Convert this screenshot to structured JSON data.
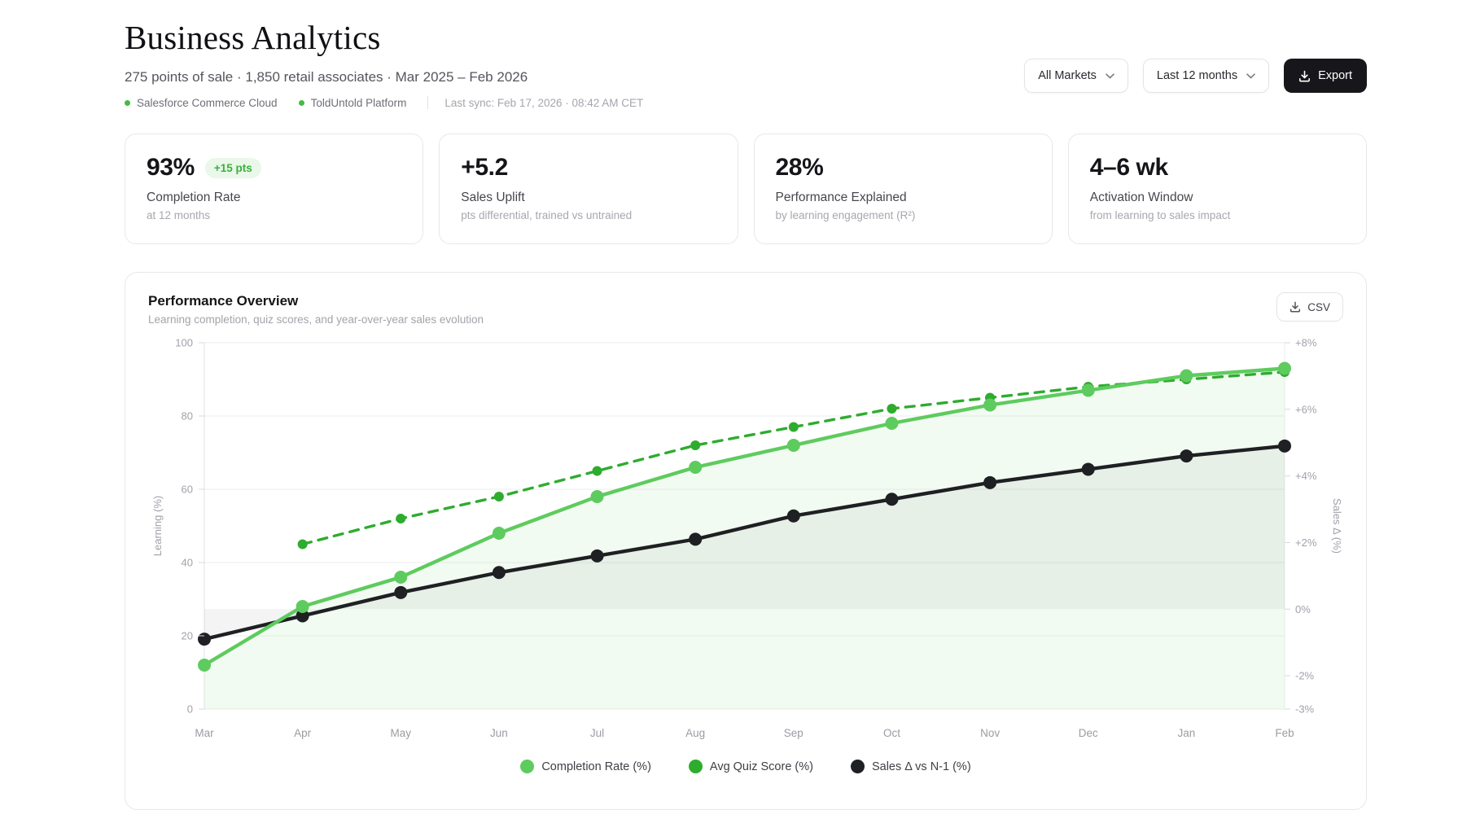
{
  "header": {
    "title": "Business Analytics",
    "subtitle": "275 points of sale · 1,850 retail associates · Mar 2025 – Feb 2026",
    "sources": [
      {
        "label": "Salesforce Commerce Cloud"
      },
      {
        "label": "ToldUntold Platform"
      }
    ],
    "last_sync": "Last sync: Feb 17, 2026 · 08:42 AM CET",
    "controls": {
      "market_filter": "All Markets",
      "period_filter": "Last 12 months",
      "export_label": "Export"
    }
  },
  "kpis": [
    {
      "value": "93%",
      "badge": "+15 pts",
      "label": "Completion Rate",
      "sublabel": "at 12 months"
    },
    {
      "value": "+5.2",
      "label": "Sales Uplift",
      "sublabel": "pts differential, trained vs untrained"
    },
    {
      "value": "28%",
      "label": "Performance Explained",
      "sublabel": "by learning engagement (R²)"
    },
    {
      "value": "4–6 wk",
      "label": "Activation Window",
      "sublabel": "from learning to sales impact"
    }
  ],
  "chart_card": {
    "csv_label": "CSV"
  },
  "chart_data": {
    "type": "line",
    "title": "Performance Overview",
    "subtitle": "Learning completion, quiz scores, and year-over-year sales evolution",
    "categories": [
      "Mar",
      "Apr",
      "May",
      "Jun",
      "Jul",
      "Aug",
      "Sep",
      "Oct",
      "Nov",
      "Dec",
      "Jan",
      "Feb"
    ],
    "series": [
      {
        "name": "Completion Rate (%)",
        "axis": "left",
        "color": "#5ECB5E",
        "style": "solid",
        "area": true,
        "values": [
          12,
          28,
          36,
          48,
          58,
          66,
          72,
          78,
          83,
          87,
          91,
          93
        ]
      },
      {
        "name": "Avg Quiz Score (%)",
        "axis": "left",
        "color": "#2EAC2E",
        "style": "dashed",
        "area": false,
        "values": [
          null,
          45,
          52,
          58,
          65,
          72,
          77,
          82,
          85,
          88,
          90,
          92
        ]
      },
      {
        "name": "Sales Δ vs N-1 (%)",
        "axis": "right",
        "color": "#1F2023",
        "style": "solid",
        "area_to_zero": true,
        "values": [
          -0.9,
          -0.2,
          0.5,
          1.1,
          1.6,
          2.1,
          2.8,
          3.3,
          3.8,
          4.2,
          4.6,
          4.9
        ]
      }
    ],
    "left_axis": {
      "label": "Learning (%)",
      "min": 0,
      "max": 100,
      "ticks": [
        0,
        20,
        40,
        60,
        80,
        100
      ]
    },
    "right_axis": {
      "label": "Sales Δ (%)",
      "min": -3,
      "max": 8,
      "ticks": [
        -3,
        -2,
        0,
        2,
        4,
        6,
        8
      ],
      "format": "signed_percent"
    },
    "grid": true,
    "legend_position": "bottom"
  }
}
